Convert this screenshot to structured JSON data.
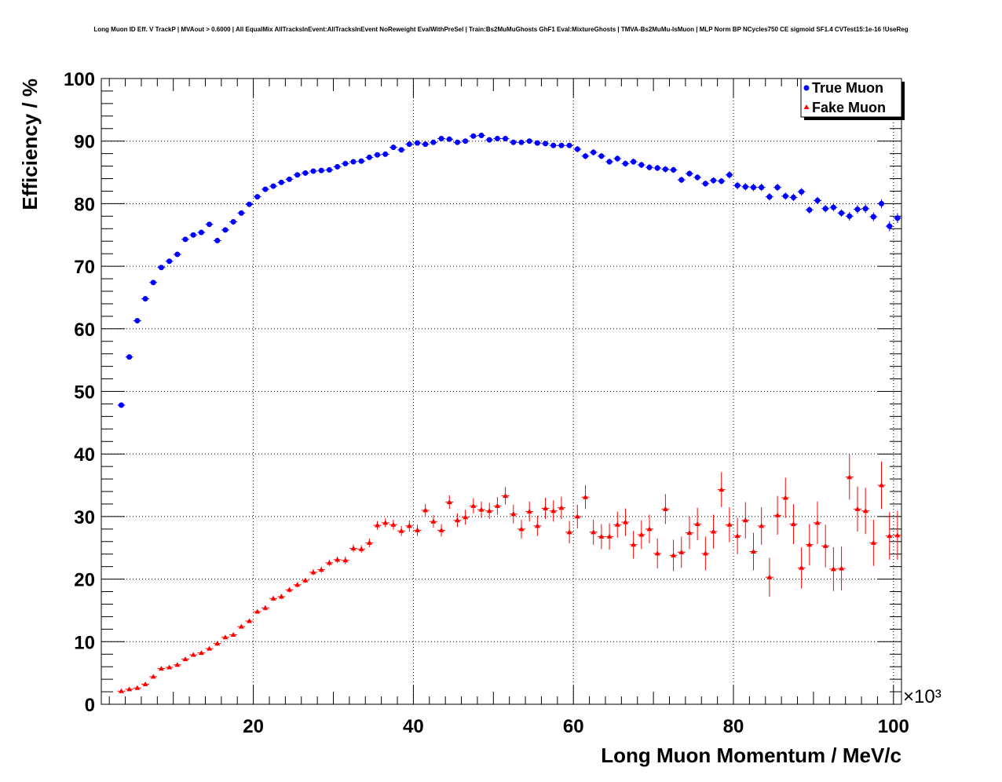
{
  "title": "Long Muon ID Eff. V TrackP | MVAout > 0.6000 | All EqualMix AllTracksInEvent:AllTracksInEvent NoReweight EvalWithPreSel | Train:Bs2MuMuGhosts GhF1 Eval:MixtureGhosts | TMVA-Bs2MuMu-IsMuon | MLP Norm BP NCycles750 CE sigmoid SF1.4 CVTest15:1e-16 !UseReg",
  "chart_data": {
    "type": "scatter",
    "title": "Long Muon ID Eff. V TrackP | MVAout > 0.6000 | All EqualMix AllTracksInEvent:AllTracksInEvent NoReweight EvalWithPreSel | Train:Bs2MuMuGhosts GhF1 Eval:MixtureGhosts | TMVA-Bs2MuMu-IsMuon | MLP Norm BP NCycles750 CE sigmoid SF1.4 CVTest15:1e-16 !UseReg",
    "xlabel": "Long Muon Momentum / MeV/c",
    "ylabel": "Efficiency / %",
    "x_multiplier": "×10³",
    "xlim": [
      1000,
      101000
    ],
    "ylim": [
      0,
      100
    ],
    "x_ticks": [
      20000,
      40000,
      60000,
      80000,
      100000
    ],
    "x_tick_labels": [
      "20",
      "40",
      "60",
      "80",
      "100"
    ],
    "y_ticks": [
      0,
      10,
      20,
      30,
      40,
      50,
      60,
      70,
      80,
      90,
      100
    ],
    "y_tick_labels": [
      "0",
      "10",
      "20",
      "30",
      "40",
      "50",
      "60",
      "70",
      "80",
      "90",
      "100"
    ],
    "grid": true,
    "legend_position": "top-right",
    "series": [
      {
        "name": "True Muon",
        "color": "#0000ff",
        "marker": "circle",
        "x": [
          3500,
          4500,
          5500,
          6500,
          7500,
          8500,
          9500,
          10500,
          11500,
          12500,
          13500,
          14500,
          15500,
          16500,
          17500,
          18500,
          19500,
          20500,
          21500,
          22500,
          23500,
          24500,
          25500,
          26500,
          27500,
          28500,
          29500,
          30500,
          31500,
          32500,
          33500,
          34500,
          35500,
          36500,
          37500,
          38500,
          39500,
          40500,
          41500,
          42500,
          43500,
          44500,
          45500,
          46500,
          47500,
          48500,
          49500,
          50500,
          51500,
          52500,
          53500,
          54500,
          55500,
          56500,
          57500,
          58500,
          59500,
          60500,
          61500,
          62500,
          63500,
          64500,
          65500,
          66500,
          67500,
          68500,
          69500,
          70500,
          71500,
          72500,
          73500,
          74500,
          75500,
          76500,
          77500,
          78500,
          79500,
          80500,
          81500,
          82500,
          83500,
          84500,
          85500,
          86500,
          87500,
          88500,
          89500,
          90500,
          91500,
          92500,
          93500,
          94500,
          95500,
          96500,
          97500,
          98500,
          99500,
          100500
        ],
        "y": [
          47.8,
          55.5,
          61.3,
          64.8,
          67.4,
          69.8,
          70.8,
          71.9,
          74.3,
          75.0,
          75.4,
          76.7,
          74.1,
          75.8,
          77.1,
          78.5,
          79.9,
          81.1,
          82.3,
          82.8,
          83.4,
          83.9,
          84.6,
          84.9,
          85.2,
          85.3,
          85.4,
          85.9,
          86.4,
          86.7,
          86.8,
          87.4,
          87.8,
          87.9,
          89.0,
          88.6,
          89.5,
          89.7,
          89.5,
          89.8,
          90.4,
          90.3,
          89.8,
          90.0,
          90.8,
          90.9,
          90.2,
          90.4,
          90.4,
          89.8,
          89.8,
          90.0,
          89.7,
          89.6,
          89.3,
          89.3,
          89.3,
          88.7,
          87.6,
          88.2,
          87.6,
          86.7,
          87.2,
          86.4,
          86.7,
          86.2,
          85.8,
          85.7,
          85.5,
          85.4,
          83.8,
          84.8,
          84.2,
          83.2,
          83.7,
          83.6,
          84.6,
          82.9,
          82.7,
          82.6,
          82.6,
          81.1,
          82.6,
          81.2,
          81.0,
          81.9,
          79.0,
          80.5,
          79.2,
          79.4,
          78.5,
          78.0,
          79.1,
          79.2,
          77.9,
          80.0,
          76.4,
          77.7
        ],
        "yerr": [
          0.4,
          0.4,
          0.4,
          0.4,
          0.4,
          0.4,
          0.4,
          0.4,
          0.4,
          0.4,
          0.4,
          0.4,
          0.4,
          0.4,
          0.4,
          0.4,
          0.4,
          0.4,
          0.4,
          0.4,
          0.4,
          0.4,
          0.4,
          0.4,
          0.4,
          0.4,
          0.4,
          0.4,
          0.4,
          0.4,
          0.4,
          0.4,
          0.4,
          0.4,
          0.4,
          0.4,
          0.4,
          0.4,
          0.4,
          0.4,
          0.4,
          0.4,
          0.4,
          0.4,
          0.4,
          0.4,
          0.4,
          0.4,
          0.4,
          0.4,
          0.4,
          0.4,
          0.4,
          0.4,
          0.4,
          0.4,
          0.4,
          0.5,
          0.5,
          0.5,
          0.5,
          0.5,
          0.5,
          0.5,
          0.5,
          0.5,
          0.5,
          0.5,
          0.5,
          0.5,
          0.5,
          0.5,
          0.5,
          0.5,
          0.5,
          0.5,
          0.6,
          0.6,
          0.6,
          0.6,
          0.6,
          0.6,
          0.6,
          0.6,
          0.6,
          0.6,
          0.6,
          0.6,
          0.6,
          0.6,
          0.6,
          0.7,
          0.7,
          0.7,
          0.7,
          0.7,
          0.8,
          0.8
        ]
      },
      {
        "name": "Fake Muon",
        "color": "#ff0000",
        "marker": "triangle",
        "x": [
          3500,
          4500,
          5500,
          6500,
          7500,
          8500,
          9500,
          10500,
          11500,
          12500,
          13500,
          14500,
          15500,
          16500,
          17500,
          18500,
          19500,
          20500,
          21500,
          22500,
          23500,
          24500,
          25500,
          26500,
          27500,
          28500,
          29500,
          30500,
          31500,
          32500,
          33500,
          34500,
          35500,
          36500,
          37500,
          38500,
          39500,
          40500,
          41500,
          42500,
          43500,
          44500,
          45500,
          46500,
          47500,
          48500,
          49500,
          50500,
          51500,
          52500,
          53500,
          54500,
          55500,
          56500,
          57500,
          58500,
          59500,
          60500,
          61500,
          62500,
          63500,
          64500,
          65500,
          66500,
          67500,
          68500,
          69500,
          70500,
          71500,
          72500,
          73500,
          74500,
          75500,
          76500,
          77500,
          78500,
          79500,
          80500,
          81500,
          82500,
          83500,
          84500,
          85500,
          86500,
          87500,
          88500,
          89500,
          90500,
          91500,
          92500,
          93500,
          94500,
          95500,
          96500,
          97500,
          98500,
          99500,
          100500
        ],
        "y": [
          2.1,
          2.4,
          2.6,
          3.2,
          4.4,
          5.7,
          5.9,
          6.3,
          7.2,
          7.9,
          8.2,
          8.9,
          9.7,
          10.7,
          11.1,
          12.4,
          13.3,
          14.8,
          15.4,
          16.9,
          17.2,
          18.3,
          19.1,
          19.8,
          21.1,
          21.5,
          22.6,
          23.1,
          23.0,
          24.9,
          24.8,
          25.8,
          28.6,
          29.0,
          28.7,
          27.7,
          28.5,
          27.8,
          31.0,
          29.2,
          27.8,
          32.3,
          29.4,
          29.9,
          31.7,
          31.1,
          30.9,
          31.7,
          33.3,
          30.4,
          28.0,
          30.8,
          28.5,
          31.3,
          30.9,
          31.4,
          27.5,
          30.0,
          33.1,
          27.5,
          26.8,
          26.8,
          28.7,
          29.1,
          25.5,
          27.1,
          28.0,
          24.1,
          31.2,
          23.8,
          24.3,
          27.4,
          28.8,
          24.1,
          27.6,
          34.3,
          28.7,
          26.9,
          29.4,
          24.4,
          28.5,
          20.3,
          30.2,
          33.0,
          28.8,
          21.8,
          25.5,
          29.0,
          25.3,
          21.6,
          21.7,
          36.3,
          31.2,
          30.9,
          25.8,
          35.0,
          26.9,
          27.0
        ],
        "yerr": [
          0.2,
          0.2,
          0.2,
          0.2,
          0.2,
          0.2,
          0.2,
          0.2,
          0.3,
          0.3,
          0.3,
          0.3,
          0.3,
          0.3,
          0.3,
          0.3,
          0.3,
          0.3,
          0.4,
          0.4,
          0.4,
          0.4,
          0.4,
          0.4,
          0.5,
          0.5,
          0.5,
          0.5,
          0.6,
          0.6,
          0.6,
          0.7,
          0.7,
          0.7,
          0.8,
          0.8,
          0.9,
          0.9,
          1.0,
          1.0,
          1.0,
          1.1,
          1.1,
          1.2,
          1.2,
          1.3,
          1.3,
          1.4,
          1.4,
          1.5,
          1.5,
          1.6,
          1.6,
          1.7,
          1.7,
          1.8,
          1.8,
          1.9,
          1.9,
          2.0,
          2.0,
          2.1,
          2.1,
          2.2,
          2.2,
          2.3,
          2.3,
          2.4,
          2.4,
          2.5,
          2.5,
          2.6,
          2.6,
          2.7,
          2.7,
          2.8,
          2.8,
          2.9,
          2.9,
          3.0,
          3.0,
          3.1,
          3.1,
          3.2,
          3.2,
          3.3,
          3.3,
          3.4,
          3.4,
          3.5,
          3.5,
          3.6,
          3.6,
          3.7,
          3.7,
          3.8,
          3.8,
          3.9
        ]
      }
    ]
  }
}
